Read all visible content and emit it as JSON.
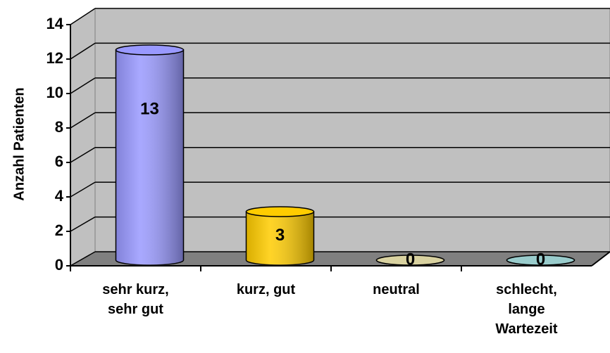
{
  "chart_data": {
    "type": "bar3d",
    "y_label": "Anzahl Patienten",
    "categories": [
      "sehr kurz, sehr gut",
      "kurz, gut",
      "neutral",
      "schlecht, lange Wartezeit"
    ],
    "values": [
      13,
      3,
      0,
      0
    ],
    "colors": [
      "#9999ff",
      "#ffcc00",
      "#d9d2a0",
      "#99cccc"
    ],
    "ylim": [
      0,
      14
    ],
    "yticks": [
      0,
      2,
      4,
      6,
      8,
      10,
      12,
      14
    ],
    "grid": true
  }
}
